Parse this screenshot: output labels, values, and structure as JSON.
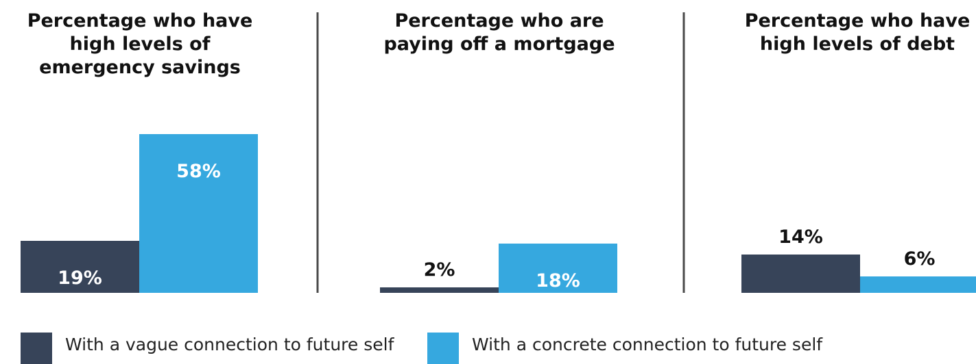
{
  "colors": {
    "vague": "#374459",
    "concrete": "#36a8df",
    "divider": "#4a4a4a",
    "label_dark": "#111111",
    "label_light": "#ffffff"
  },
  "legend": {
    "vague_label": "With a vague connection to future self",
    "concrete_label": "With a concrete connection to future self"
  },
  "chart_data": [
    {
      "type": "bar",
      "title": "Percentage who have high levels of emergency savings",
      "categories": [
        "With a vague connection to future self",
        "With a concrete connection to future self"
      ],
      "values": [
        19,
        58
      ],
      "labels": [
        "19%",
        "58%"
      ],
      "ylim": [
        0,
        60
      ]
    },
    {
      "type": "bar",
      "title": "Percentage who are paying off a mortgage",
      "categories": [
        "With a vague connection to future self",
        "With a concrete connection to future self"
      ],
      "values": [
        2,
        18
      ],
      "labels": [
        "2%",
        "18%"
      ],
      "ylim": [
        0,
        60
      ]
    },
    {
      "type": "bar",
      "title": "Percentage who have high levels of debt",
      "categories": [
        "With a vague connection to future self",
        "With a concrete connection to future self"
      ],
      "values": [
        14,
        6
      ],
      "labels": [
        "14%",
        "6%"
      ],
      "ylim": [
        0,
        60
      ]
    }
  ]
}
